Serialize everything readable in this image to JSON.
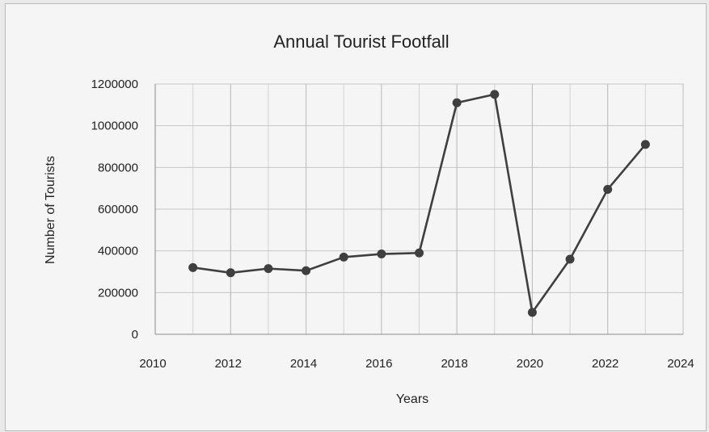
{
  "chart_data": {
    "type": "scatter",
    "title": "Annual Tourist Footfall",
    "xlabel": "Years",
    "ylabel": "Number of Tourists",
    "xlim": [
      2010,
      2024
    ],
    "ylim": [
      0,
      1200000
    ],
    "xticks": [
      2010,
      2012,
      2014,
      2016,
      2018,
      2020,
      2022,
      2024
    ],
    "yticks": [
      0,
      200000,
      400000,
      600000,
      800000,
      1000000,
      1200000
    ],
    "grid": true,
    "legend": "none",
    "series": [
      {
        "x": [
          2011,
          2012,
          2013,
          2014,
          2015,
          2016,
          2017,
          2018,
          2019,
          2020,
          2021,
          2022,
          2023
        ],
        "y": [
          320000,
          295000,
          315000,
          305000,
          370000,
          385000,
          390000,
          1110000,
          1150000,
          105000,
          360000,
          695000,
          910000
        ],
        "color": "#3f3f3f"
      }
    ]
  }
}
